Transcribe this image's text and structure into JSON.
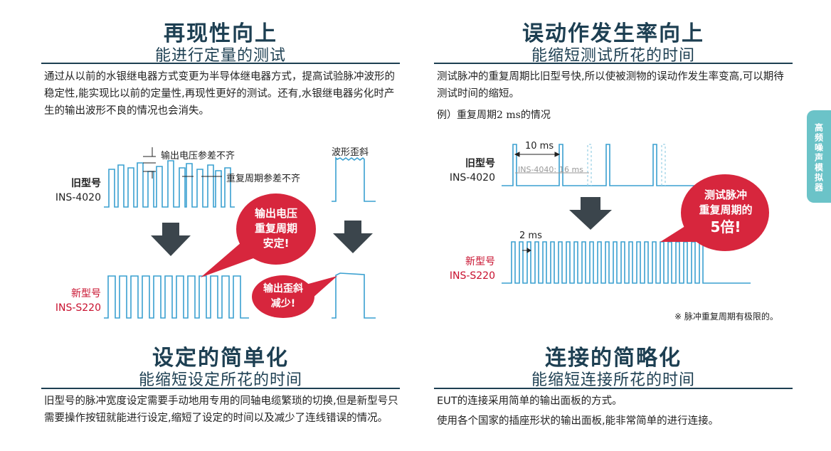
{
  "sections": {
    "reproducibility": {
      "title": "再现性向上",
      "subtitle": "能进行定量的测试",
      "body": "通过从以前的水银继电器方式变更为半导体继电器方式，提高试验脉冲波形的稳定性,能实现比以前的定量性,再现性更好的测试。还有,水银继电器劣化时产生的输出波形不良的情况也会消失。",
      "labels": {
        "voltage_variation": "输出电压参差不齐",
        "period_variation": "重复周期参差不齐",
        "waveform_skew": "波形歪斜"
      },
      "old_model": {
        "prefix": "旧型号",
        "name": "INS-4020"
      },
      "new_model": {
        "prefix": "新型号",
        "name": "INS-S220"
      },
      "bubble_stable": [
        "输出电压",
        "重复周期",
        "安定!"
      ],
      "bubble_skew": [
        "输出歪斜",
        "减少!"
      ]
    },
    "malfunction": {
      "title": "误动作发生率向上",
      "subtitle": "能缩短测试所花的时间",
      "body": "测试脉冲的重复周期比旧型号快,所以使被测物的误动作发生率变高,可以期待测试时间的缩短。",
      "example": "例）重复周期2 ms的情况",
      "labels": {
        "period_10ms": "10 ms",
        "ins4040": "INS-4040:",
        "period_16ms": "16 ms",
        "period_2ms": "2 ms"
      },
      "old_model": {
        "prefix": "旧型号",
        "name": "INS-4020"
      },
      "new_model": {
        "prefix": "新型号",
        "name": "INS-S220"
      },
      "bubble": [
        "测试脉冲",
        "重复周期的",
        "5倍!"
      ],
      "note": "※ 脉冲重复周期有极限的。"
    },
    "setting": {
      "title": "设定的简单化",
      "subtitle": "能缩短设定所花的时间",
      "body": "旧型号的脉冲宽度设定需要手动地用专用的同轴电缆繁琐的切换,但是新型号只需要操作按钮就能进行设定,缩短了设定的时间以及减少了连线错误的情况。"
    },
    "connection": {
      "title": "连接的简略化",
      "subtitle": "能缩短连接所花的时间",
      "body_lines": [
        "EUT的连接采用简单的输出面板的方式。",
        "使用各个国家的插座形状的输出面板,能非常简单的进行连接。"
      ]
    }
  },
  "side_tab": "高频噪声模拟器",
  "colors": {
    "heading": "#1d3f52",
    "waveform": "#3aa0d0",
    "bubble": "#d7263d",
    "arrow": "#3b454c",
    "accent_red": "#c8102e",
    "side_tab": "#6bc3c8"
  }
}
